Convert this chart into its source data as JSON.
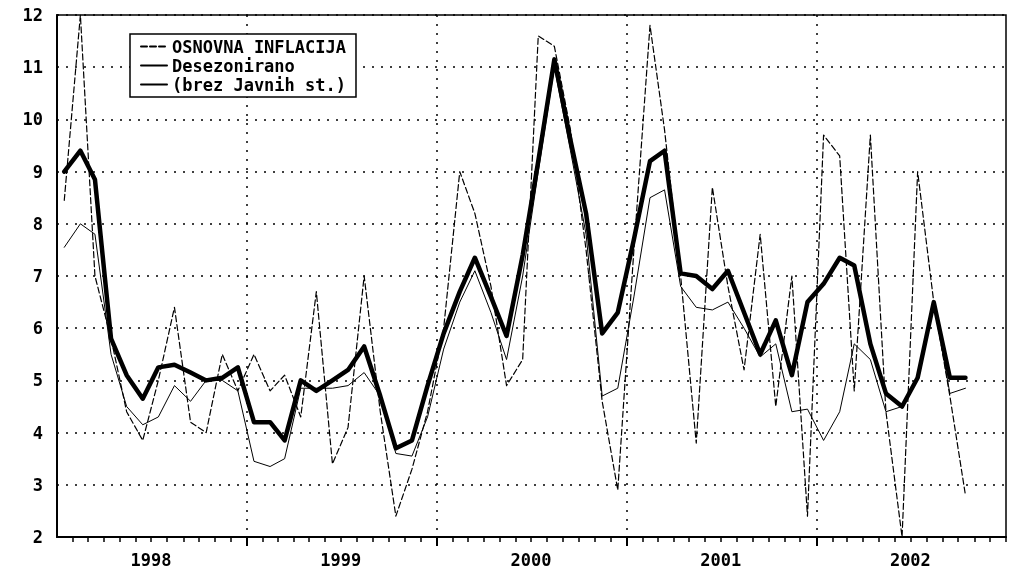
{
  "chart_data": {
    "type": "line",
    "x": [
      "1998-01-15",
      "1998-02-15",
      "1998-03-15",
      "1998-04-15",
      "1998-05-15",
      "1998-06-15",
      "1998-07-15",
      "1998-08-15",
      "1998-09-15",
      "1998-10-15",
      "1998-11-15",
      "1998-12-15",
      "1999-01-15",
      "1999-02-15",
      "1999-03-15",
      "1999-04-15",
      "1999-05-15",
      "1999-06-15",
      "1999-07-15",
      "1999-08-15",
      "1999-09-15",
      "1999-10-15",
      "1999-11-15",
      "1999-12-15",
      "2000-01-15",
      "2000-02-15",
      "2000-03-15",
      "2000-04-15",
      "2000-05-15",
      "2000-06-15",
      "2000-07-15",
      "2000-08-15",
      "2000-09-15",
      "2000-10-15",
      "2000-11-15",
      "2000-12-15",
      "2001-01-15",
      "2001-02-15",
      "2001-03-15",
      "2001-04-15",
      "2001-05-15",
      "2001-06-15",
      "2001-07-15",
      "2001-08-15",
      "2001-09-15",
      "2001-10-15",
      "2001-11-15",
      "2001-12-15",
      "2002-01-15",
      "2002-02-15",
      "2002-03-15",
      "2002-04-15",
      "2002-05-15",
      "2002-06-15",
      "2002-07-15",
      "2002-08-15",
      "2002-09-15",
      "2002-10-15"
    ],
    "series": [
      {
        "name": "OSNOVNA INFLACIJA",
        "color": "#000000",
        "line_style": "dashed",
        "values": [
          8.45,
          12,
          7.0,
          5.8,
          4.4,
          3.85,
          5.0,
          6.4,
          4.2,
          4.0,
          5.5,
          4.8,
          5.5,
          4.8,
          5.1,
          4.3,
          6.7,
          3.4,
          4.1,
          7.0,
          4.4,
          2.4,
          3.3,
          4.4,
          6.0,
          9.0,
          8.2,
          6.8,
          4.9,
          5.4,
          11.6,
          11.4,
          9.8,
          7.5,
          4.6,
          2.9,
          7.5,
          11.8,
          9.8,
          7.0,
          3.8,
          8.7,
          6.8,
          5.2,
          7.8,
          4.5,
          7.0,
          2.4,
          9.7,
          9.3,
          4.8,
          9.7,
          4.4,
          2.0,
          9.0,
          6.5,
          4.7,
          2.8
        ]
      },
      {
        "name": "Desezonirano",
        "color": "#000000",
        "line_style": "solid",
        "values": [
          9.0,
          9.4,
          8.85,
          5.8,
          5.1,
          4.65,
          5.25,
          5.3,
          5.15,
          5.0,
          5.05,
          5.25,
          4.2,
          4.2,
          3.85,
          5.0,
          4.8,
          5.0,
          5.2,
          5.65,
          4.7,
          3.7,
          3.85,
          4.9,
          5.9,
          6.7,
          7.35,
          6.6,
          5.85,
          7.4,
          9.2,
          11.15,
          9.6,
          8.2,
          5.9,
          6.3,
          7.7,
          9.2,
          9.4,
          7.05,
          7.0,
          6.75,
          7.1,
          6.3,
          5.5,
          6.15,
          5.1,
          6.5,
          6.85,
          7.35,
          7.2,
          5.7,
          4.75,
          4.5,
          5.05,
          6.5,
          5.05,
          5.05
        ]
      },
      {
        "name": "(brez Javnih st.)",
        "color": "#000000",
        "line_style": "solid",
        "values": [
          7.55,
          8.0,
          7.8,
          5.5,
          4.5,
          4.15,
          4.3,
          4.9,
          4.6,
          5.0,
          5.0,
          4.8,
          3.45,
          3.35,
          3.5,
          4.85,
          4.85,
          4.85,
          4.9,
          5.15,
          4.7,
          3.6,
          3.55,
          4.3,
          5.6,
          6.5,
          7.1,
          6.3,
          5.4,
          7.0,
          9.0,
          11.0,
          9.4,
          7.8,
          4.7,
          4.85,
          6.6,
          8.5,
          8.65,
          6.8,
          6.4,
          6.35,
          6.5,
          6.0,
          5.45,
          5.7,
          4.4,
          4.45,
          3.85,
          4.4,
          5.7,
          5.4,
          4.4,
          4.5,
          5.1,
          6.5,
          4.75,
          4.85
        ]
      }
    ],
    "xlim": [
      "1998-01-01",
      "2003-01-01"
    ],
    "xticks": [
      {
        "value": "1998-07-01",
        "label": "1998"
      },
      {
        "value": "1999-01-01",
        "label": null
      },
      {
        "value": "1999-07-01",
        "label": "1999"
      },
      {
        "value": "2000-01-01",
        "label": null
      },
      {
        "value": "2000-07-01",
        "label": "2000"
      },
      {
        "value": "2001-01-01",
        "label": null
      },
      {
        "value": "2001-07-01",
        "label": "2001"
      },
      {
        "value": "2002-01-01",
        "label": null
      },
      {
        "value": "2002-07-01",
        "label": "2002"
      }
    ],
    "ylim": [
      2,
      12
    ],
    "yticks": [
      2,
      3,
      4,
      5,
      6,
      7,
      8,
      9,
      10,
      11,
      12
    ],
    "grid": true,
    "legend": "top left",
    "marker": "none"
  }
}
